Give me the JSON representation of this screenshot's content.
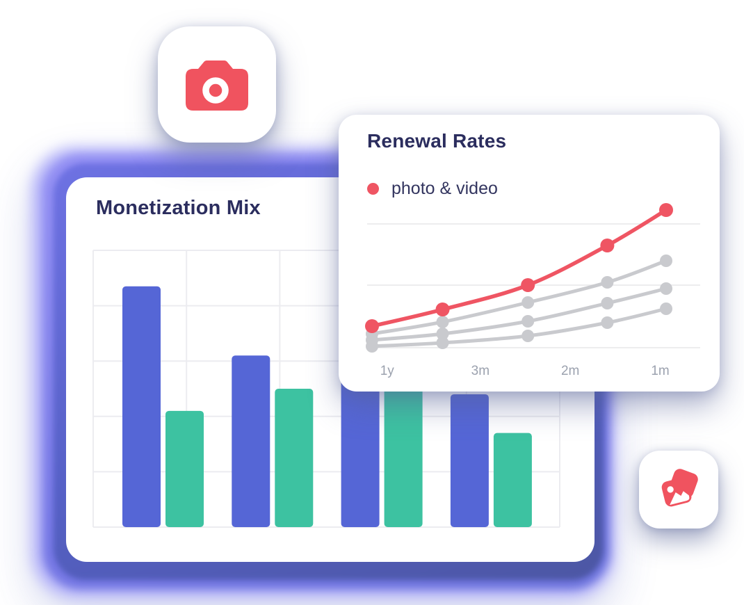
{
  "page": {
    "background": "#ffffff"
  },
  "colors": {
    "accent_blue": "#5566D6",
    "accent_green": "#3DC2A1",
    "accent_red": "#EF5563",
    "title_navy": "#2B2D5E",
    "gray_line": "#C9CACE",
    "grid_line": "#ECECF0",
    "axis_text": "#9BA1AE"
  },
  "icon_cards": [
    {
      "name": "camera-icon",
      "color": "#F0535F"
    },
    {
      "name": "photo-gallery-icon",
      "color": "#F0535F"
    }
  ],
  "monetization_card": {
    "title": "Monetization Mix"
  },
  "renewal_card": {
    "title": "Renewal Rates",
    "legend_label": "photo & video",
    "legend_color": "#EF5563"
  },
  "chart_data": [
    {
      "type": "bar",
      "title": "Monetization Mix",
      "categories": [
        "",
        "",
        "",
        ""
      ],
      "series": [
        {
          "name": "primary-blue",
          "color": "#5566D6",
          "values": [
            87,
            62,
            65,
            48
          ]
        },
        {
          "name": "secondary-green",
          "color": "#3DC2A1",
          "values": [
            42,
            50,
            53,
            34
          ]
        }
      ],
      "ylim": [
        0,
        100
      ],
      "grid": true,
      "legend_position": "none"
    },
    {
      "type": "line",
      "title": "Renewal Rates",
      "x_tick_labels": [
        "1y",
        "3m",
        "2m",
        "1m"
      ],
      "x_tick_positions": [
        0.06,
        0.34,
        0.61,
        0.88
      ],
      "x": [
        0,
        0.24,
        0.53,
        0.8,
        1
      ],
      "series": [
        {
          "name": "gray-top",
          "color": "#C9CACE",
          "values": [
            20,
            37,
            65,
            94,
            125
          ]
        },
        {
          "name": "gray-middle",
          "color": "#C9CACE",
          "values": [
            11,
            20,
            38,
            64,
            85
          ]
        },
        {
          "name": "gray-bottom",
          "color": "#C9CACE",
          "values": [
            2,
            7,
            17,
            36,
            56
          ]
        },
        {
          "name": "photo & video",
          "color": "#EF5563",
          "values": [
            31,
            55,
            90,
            147,
            198
          ]
        }
      ],
      "gridline_values": [
        0,
        90,
        178
      ],
      "ylim": [
        0,
        212
      ],
      "grid": true,
      "legend_position": "top-left"
    }
  ]
}
